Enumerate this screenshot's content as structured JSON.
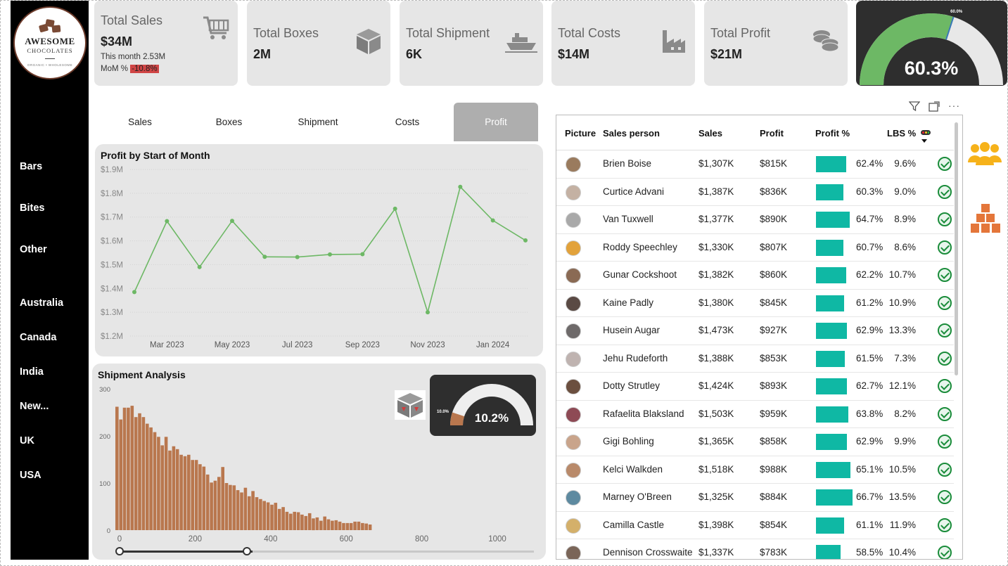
{
  "brand": {
    "line1": "AWESOME",
    "line2": "CHOCOLATES",
    "line3": "ORGANIC • WHOLESOME"
  },
  "sidebar": {
    "categories": [
      "Bars",
      "Bites",
      "Other"
    ],
    "countries": [
      "Australia",
      "Canada",
      "India",
      "New...",
      "UK",
      "USA"
    ]
  },
  "kpis": {
    "total_sales": {
      "title": "Total Sales",
      "value": "$34M",
      "month": "This month 2.53M",
      "mom_label": "MoM %",
      "mom_value": "-10.8%",
      "icon": "shopping-cart-icon"
    },
    "total_boxes": {
      "title": "Total Boxes",
      "value": "2M",
      "icon": "box-icon"
    },
    "total_shipment": {
      "title": "Total Shipment",
      "value": "6K",
      "icon": "ship-icon"
    },
    "total_costs": {
      "title": "Total Costs",
      "value": "$14M",
      "icon": "factory-icon"
    },
    "total_profit": {
      "title": "Total Profit",
      "value": "$21M",
      "icon": "coins-icon"
    }
  },
  "profit_gauge": {
    "value_label": "60.3%",
    "target_label": "60.0%",
    "fraction": 0.603,
    "target": 0.6,
    "fill_color": "#6db865",
    "track_color": "#e8e8e8"
  },
  "tabs": [
    "Sales",
    "Boxes",
    "Shipment",
    "Costs",
    "Profit"
  ],
  "active_tab": "Profit",
  "profit_chart": {
    "title": "Profit by Start of Month",
    "y_ticks": [
      "$1.9M",
      "$1.8M",
      "$1.7M",
      "$1.6M",
      "$1.5M",
      "$1.4M",
      "$1.3M",
      "$1.2M"
    ],
    "x_ticks": [
      "Mar 2023",
      "May 2023",
      "Jul 2023",
      "Sep 2023",
      "Nov 2023",
      "Jan 2024"
    ]
  },
  "shipment_chart": {
    "title": "Shipment Analysis",
    "y_ticks": [
      "300",
      "200",
      "100",
      "0"
    ],
    "x_ticks": [
      "0",
      "200",
      "400",
      "600",
      "800",
      "1000"
    ]
  },
  "shipment_gauge": {
    "value_label": "10.2%",
    "target_label": "10.0%",
    "fraction": 0.102,
    "target": 0.1,
    "fill_color": "#b9774e",
    "track_color": "#eeeeee"
  },
  "chart_data": [
    {
      "type": "line",
      "title": "Profit by Start of Month",
      "x": [
        "Feb 2023",
        "Mar 2023",
        "Apr 2023",
        "May 2023",
        "Jun 2023",
        "Jul 2023",
        "Aug 2023",
        "Sep 2023",
        "Oct 2023",
        "Nov 2023",
        "Dec 2023",
        "Jan 2024",
        "Feb 2024"
      ],
      "values": [
        1.385,
        1.683,
        1.49,
        1.684,
        1.533,
        1.532,
        1.543,
        1.544,
        1.735,
        1.3,
        1.827,
        1.686,
        1.602
      ],
      "unit": "$M",
      "ylim": [
        1.2,
        1.9
      ],
      "color": "#6db865",
      "grid": true
    },
    {
      "type": "bar",
      "title": "Shipment Analysis",
      "bin_width": 10,
      "x_start": 0,
      "values": [
        262,
        235,
        260,
        260,
        264,
        240,
        248,
        240,
        226,
        218,
        208,
        198,
        180,
        198,
        169,
        178,
        172,
        160,
        157,
        160,
        149,
        149,
        140,
        135,
        118,
        101,
        105,
        113,
        134,
        100,
        96,
        95,
        85,
        80,
        90,
        72,
        83,
        70,
        66,
        62,
        59,
        54,
        58,
        45,
        49,
        39,
        35,
        39,
        38,
        33,
        30,
        36,
        25,
        27,
        20,
        29,
        23,
        20,
        21,
        18,
        15,
        15,
        15,
        18,
        18,
        15,
        14,
        12
      ],
      "ylim": [
        0,
        300
      ],
      "xlim": [
        0,
        1100
      ],
      "color": "#b9774e"
    }
  ],
  "table": {
    "headers": [
      "Picture",
      "Sales person",
      "Sales",
      "Profit",
      "Profit %",
      "LBS %"
    ],
    "rows": [
      {
        "name": "Brien Boise",
        "sales": "$1,307K",
        "profit": "$815K",
        "pct": "62.4%",
        "pct_value": 62.4,
        "lbs": "9.6%",
        "avatar": "#9a7b5e"
      },
      {
        "name": "Curtice Advani",
        "sales": "$1,387K",
        "profit": "$836K",
        "pct": "60.3%",
        "pct_value": 60.3,
        "lbs": "9.0%",
        "avatar": "#c4b1a3"
      },
      {
        "name": "Van Tuxwell",
        "sales": "$1,377K",
        "profit": "$890K",
        "pct": "64.7%",
        "pct_value": 64.7,
        "lbs": "8.9%",
        "avatar": "#a9a9a9"
      },
      {
        "name": "Roddy Speechley",
        "sales": "$1,330K",
        "profit": "$807K",
        "pct": "60.7%",
        "pct_value": 60.7,
        "lbs": "8.6%",
        "avatar": "#e2a23b"
      },
      {
        "name": "Gunar Cockshoot",
        "sales": "$1,382K",
        "profit": "$860K",
        "pct": "62.2%",
        "pct_value": 62.2,
        "lbs": "10.7%",
        "avatar": "#8a6a54"
      },
      {
        "name": "Kaine Padly",
        "sales": "$1,380K",
        "profit": "$845K",
        "pct": "61.2%",
        "pct_value": 61.2,
        "lbs": "10.9%",
        "avatar": "#5a4a44"
      },
      {
        "name": "Husein Augar",
        "sales": "$1,473K",
        "profit": "$927K",
        "pct": "62.9%",
        "pct_value": 62.9,
        "lbs": "13.3%",
        "avatar": "#6e6a6a"
      },
      {
        "name": "Jehu Rudeforth",
        "sales": "$1,388K",
        "profit": "$853K",
        "pct": "61.5%",
        "pct_value": 61.5,
        "lbs": "7.3%",
        "avatar": "#bfb3b0"
      },
      {
        "name": "Dotty Strutley",
        "sales": "$1,424K",
        "profit": "$893K",
        "pct": "62.7%",
        "pct_value": 62.7,
        "lbs": "12.1%",
        "avatar": "#6b4f3f"
      },
      {
        "name": "Rafaelita Blaksland",
        "sales": "$1,503K",
        "profit": "$959K",
        "pct": "63.8%",
        "pct_value": 63.8,
        "lbs": "8.2%",
        "avatar": "#8e4a55"
      },
      {
        "name": "Gigi Bohling",
        "sales": "$1,365K",
        "profit": "$858K",
        "pct": "62.9%",
        "pct_value": 62.9,
        "lbs": "9.9%",
        "avatar": "#c9a48b"
      },
      {
        "name": "Kelci Walkden",
        "sales": "$1,518K",
        "profit": "$988K",
        "pct": "65.1%",
        "pct_value": 65.1,
        "lbs": "10.5%",
        "avatar": "#b98a6a"
      },
      {
        "name": "Marney O'Breen",
        "sales": "$1,325K",
        "profit": "$884K",
        "pct": "66.7%",
        "pct_value": 66.7,
        "lbs": "13.5%",
        "avatar": "#5e8aa0"
      },
      {
        "name": "Camilla Castle",
        "sales": "$1,398K",
        "profit": "$854K",
        "pct": "61.1%",
        "pct_value": 61.1,
        "lbs": "11.9%",
        "avatar": "#d4b06a"
      },
      {
        "name": "Dennison Crosswaite",
        "sales": "$1,337K",
        "profit": "$783K",
        "pct": "58.5%",
        "pct_value": 58.5,
        "lbs": "10.4%",
        "avatar": "#7a6558"
      }
    ]
  },
  "side_icons": [
    "team-icon",
    "boxes-stack-icon"
  ],
  "colors": {
    "accent_teal": "#0fb8a4",
    "team_icon": "#f6b21a",
    "boxes_icon": "#e4763a"
  }
}
